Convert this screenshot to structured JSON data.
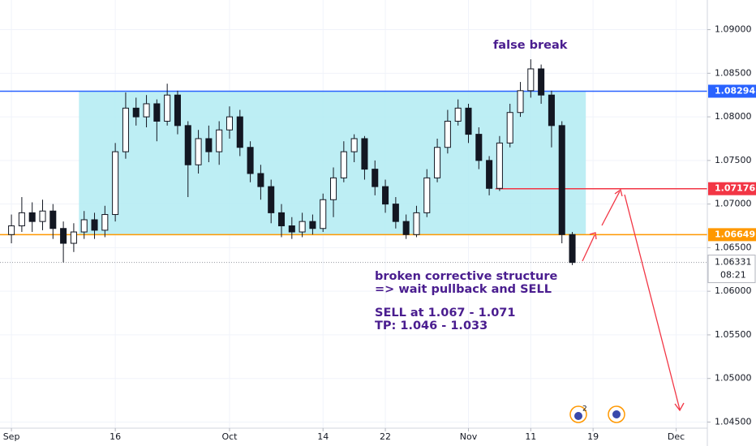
{
  "chart_data": {
    "type": "candlestick",
    "xlim": [
      -1.1,
      67
    ],
    "xticks": [
      {
        "value": 0,
        "label": "Sep"
      },
      {
        "value": 10,
        "label": "16"
      },
      {
        "value": 21,
        "label": "Oct"
      },
      {
        "value": 30,
        "label": "14"
      },
      {
        "value": 36,
        "label": "22"
      },
      {
        "value": 44,
        "label": "Nov"
      },
      {
        "value": 50,
        "label": "11"
      },
      {
        "value": 56,
        "label": "19"
      },
      {
        "value": 64,
        "label": "Dec"
      }
    ],
    "ylim": [
      1.0443,
      1.0934
    ],
    "yticks": [
      {
        "value": 1.045,
        "label": "1.04500"
      },
      {
        "value": 1.05,
        "label": "1.05000"
      },
      {
        "value": 1.055,
        "label": "1.05500"
      },
      {
        "value": 1.06,
        "label": "1.06000"
      },
      {
        "value": 1.065,
        "label": "1.06500"
      },
      {
        "value": 1.07,
        "label": "1.07000"
      },
      {
        "value": 1.075,
        "label": "1.07500"
      },
      {
        "value": 1.08,
        "label": "1.08000"
      },
      {
        "value": 1.085,
        "label": "1.08500"
      },
      {
        "value": 1.09,
        "label": "1.09000"
      }
    ],
    "grid": true,
    "candles": {
      "open": [
        1.0665,
        1.0675,
        1.069,
        1.068,
        1.0692,
        1.0672,
        1.0655,
        1.0668,
        1.0682,
        1.067,
        1.0688,
        1.076,
        1.081,
        1.08,
        1.0815,
        1.0795,
        1.0825,
        1.079,
        1.0745,
        1.0775,
        1.076,
        1.0785,
        1.08,
        1.0765,
        1.0735,
        1.072,
        1.069,
        1.0675,
        1.0668,
        1.068,
        1.0672,
        1.0705,
        1.073,
        1.076,
        1.0775,
        1.074,
        1.072,
        1.07,
        1.068,
        1.0665,
        1.069,
        1.073,
        1.0765,
        1.0795,
        1.081,
        1.078,
        1.075,
        1.0718,
        1.077,
        1.0805,
        1.083,
        1.0855,
        1.0825,
        1.079,
        1.0665
      ],
      "high": [
        1.0688,
        1.0708,
        1.0702,
        1.0705,
        1.07,
        1.068,
        1.0678,
        1.0692,
        1.069,
        1.0698,
        1.077,
        1.0828,
        1.0822,
        1.0825,
        1.082,
        1.0838,
        1.083,
        1.0795,
        1.0785,
        1.079,
        1.0795,
        1.0812,
        1.0808,
        1.0772,
        1.0745,
        1.0728,
        1.07,
        1.0685,
        1.069,
        1.0688,
        1.0712,
        1.0742,
        1.0772,
        1.078,
        1.0778,
        1.075,
        1.0728,
        1.0708,
        1.0688,
        1.0698,
        1.074,
        1.0775,
        1.0808,
        1.082,
        1.0815,
        1.0788,
        1.0755,
        1.0778,
        1.0815,
        1.084,
        1.0866,
        1.086,
        1.083,
        1.0795,
        1.0668
      ],
      "low": [
        1.0655,
        1.0668,
        1.0668,
        1.067,
        1.066,
        1.0633,
        1.0645,
        1.066,
        1.066,
        1.0662,
        1.068,
        1.0752,
        1.079,
        1.0788,
        1.0772,
        1.079,
        1.078,
        1.0708,
        1.0735,
        1.0748,
        1.0745,
        1.0775,
        1.0755,
        1.0725,
        1.0705,
        1.0678,
        1.0662,
        1.066,
        1.0662,
        1.0665,
        1.0668,
        1.0685,
        1.0725,
        1.0748,
        1.0728,
        1.071,
        1.069,
        1.0672,
        1.066,
        1.0662,
        1.0685,
        1.0725,
        1.0758,
        1.079,
        1.077,
        1.074,
        1.071,
        1.0715,
        1.0765,
        1.08,
        1.0822,
        1.0815,
        1.0765,
        1.0655,
        1.063
      ],
      "close": [
        1.0675,
        1.069,
        1.068,
        1.0692,
        1.0672,
        1.0655,
        1.0668,
        1.0682,
        1.067,
        1.0688,
        1.076,
        1.081,
        1.08,
        1.0815,
        1.0795,
        1.0825,
        1.079,
        1.0745,
        1.0775,
        1.076,
        1.0785,
        1.08,
        1.0765,
        1.0735,
        1.072,
        1.069,
        1.0675,
        1.0668,
        1.068,
        1.0672,
        1.0705,
        1.073,
        1.076,
        1.0775,
        1.074,
        1.072,
        1.07,
        1.068,
        1.0665,
        1.069,
        1.073,
        1.0765,
        1.0795,
        1.081,
        1.078,
        1.075,
        1.0718,
        1.077,
        1.0805,
        1.083,
        1.0855,
        1.0825,
        1.079,
        1.0665,
        1.0633
      ]
    },
    "zone": {
      "from": 6.5,
      "to": 55.3,
      "low": 1.06649,
      "high": 1.08294,
      "color": "#b2ebf2"
    },
    "levels": [
      {
        "price": 1.08294,
        "color": "#2962ff",
        "from": -1.1
      },
      {
        "price": 1.07176,
        "color": "#f23645",
        "from": 46.6
      },
      {
        "price": 1.06649,
        "color": "#ff9800",
        "from": -1.1
      }
    ],
    "last_price": 1.06331,
    "countdown": "08:21",
    "annotations": [
      "false break",
      "broken corrective structure",
      "=> wait pullback and SELL",
      "SELL at 1.067 - 1.071",
      "TP: 1.046 - 1.033"
    ],
    "event_badge": "2"
  }
}
